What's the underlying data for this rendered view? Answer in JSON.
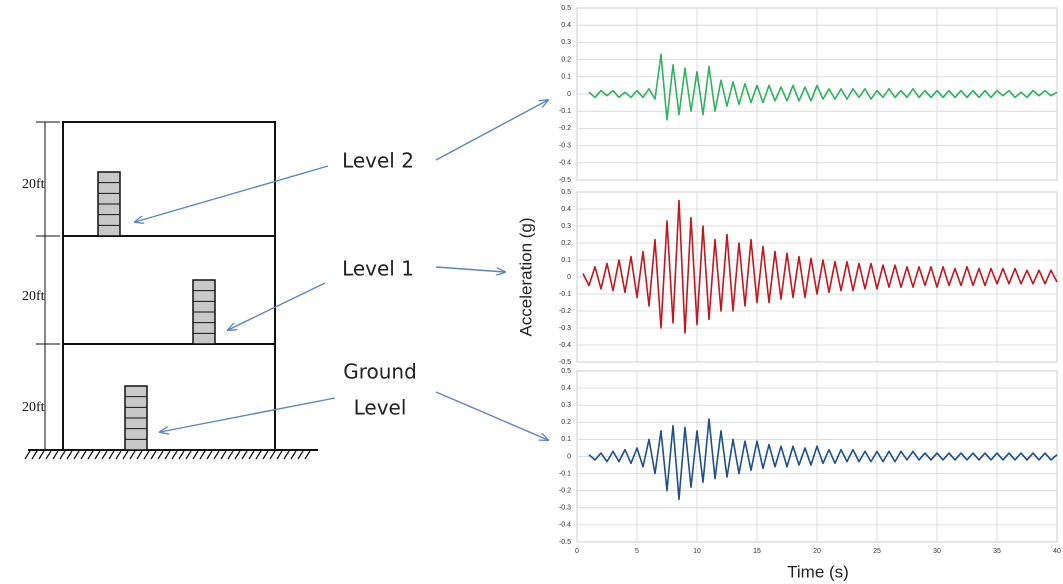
{
  "diagram": {
    "dimensions": [
      "20ft",
      "20ft",
      "20ft"
    ],
    "levels": [
      {
        "lines": [
          "Level 2"
        ]
      },
      {
        "lines": [
          "Level 1"
        ]
      },
      {
        "lines": [
          "Ground",
          "Level"
        ]
      }
    ]
  },
  "chart_data": [
    {
      "type": "line",
      "ylabel": "Acceleration (g)",
      "color": "#2fb35c",
      "grid": true,
      "xlim": [
        0,
        40
      ],
      "ylim": [
        -0.5,
        0.5
      ],
      "yticks": [
        -0.5,
        -0.4,
        -0.3,
        -0.2,
        -0.1,
        0,
        0.1,
        0.2,
        0.3,
        0.4,
        0.5
      ],
      "x": [
        0,
        0.5,
        1,
        1.5,
        2,
        2.5,
        3,
        3.5,
        4,
        4.5,
        5,
        5.5,
        6,
        6.5,
        7,
        7.5,
        8,
        8.5,
        9,
        9.5,
        10,
        10.5,
        11,
        11.5,
        12,
        12.5,
        13,
        13.5,
        14,
        14.5,
        15,
        15.5,
        16,
        16.5,
        17,
        17.5,
        18,
        18.5,
        19,
        19.5,
        20,
        20.5,
        21,
        21.5,
        22,
        22.5,
        23,
        23.5,
        24,
        24.5,
        25,
        25.5,
        26,
        26.5,
        27,
        27.5,
        28,
        28.5,
        29,
        29.5,
        30,
        30.5,
        31,
        31.5,
        32,
        32.5,
        33,
        33.5,
        34,
        34.5,
        35,
        35.5,
        36,
        36.5,
        37,
        37.5,
        38,
        38.5,
        39,
        39.5,
        40
      ],
      "values": [
        null,
        null,
        0.01,
        -0.02,
        0.02,
        -0.01,
        0.02,
        -0.02,
        0.01,
        -0.02,
        0.02,
        -0.02,
        0.03,
        -0.03,
        0.23,
        -0.15,
        0.17,
        -0.12,
        0.15,
        -0.1,
        0.13,
        -0.12,
        0.16,
        -0.1,
        0.08,
        -0.07,
        0.07,
        -0.06,
        0.06,
        -0.05,
        0.05,
        -0.05,
        0.05,
        -0.04,
        0.04,
        -0.04,
        0.05,
        -0.04,
        0.04,
        -0.04,
        0.05,
        -0.03,
        0.03,
        -0.03,
        0.03,
        -0.03,
        0.03,
        -0.02,
        0.03,
        -0.03,
        0.02,
        -0.02,
        0.03,
        -0.02,
        0.02,
        -0.02,
        0.03,
        -0.02,
        0.02,
        -0.02,
        0.02,
        -0.02,
        0.02,
        -0.02,
        0.02,
        -0.02,
        0.02,
        -0.02,
        0.02,
        -0.02,
        0.02,
        -0.01,
        0.02,
        -0.02,
        0.01,
        -0.02,
        0.02,
        -0.01,
        0.02,
        -0.01,
        0.01
      ]
    },
    {
      "type": "line",
      "color": "#c4161e",
      "grid": true,
      "xlim": [
        0,
        40
      ],
      "ylim": [
        -0.5,
        0.5
      ],
      "yticks": [
        -0.5,
        -0.4,
        -0.3,
        -0.2,
        -0.1,
        0,
        0.1,
        0.2,
        0.3,
        0.4,
        0.5
      ],
      "x": [
        0,
        0.5,
        1,
        1.5,
        2,
        2.5,
        3,
        3.5,
        4,
        4.5,
        5,
        5.5,
        6,
        6.5,
        7,
        7.5,
        8,
        8.5,
        9,
        9.5,
        10,
        10.5,
        11,
        11.5,
        12,
        12.5,
        13,
        13.5,
        14,
        14.5,
        15,
        15.5,
        16,
        16.5,
        17,
        17.5,
        18,
        18.5,
        19,
        19.5,
        20,
        20.5,
        21,
        21.5,
        22,
        22.5,
        23,
        23.5,
        24,
        24.5,
        25,
        25.5,
        26,
        26.5,
        27,
        27.5,
        28,
        28.5,
        29,
        29.5,
        30,
        30.5,
        31,
        31.5,
        32,
        32.5,
        33,
        33.5,
        34,
        34.5,
        35,
        35.5,
        36,
        36.5,
        37,
        37.5,
        38,
        38.5,
        39,
        39.5,
        40
      ],
      "values": [
        null,
        0.02,
        -0.05,
        0.06,
        -0.07,
        0.08,
        -0.08,
        0.1,
        -0.09,
        0.12,
        -0.12,
        0.15,
        -0.17,
        0.22,
        -0.3,
        0.33,
        -0.27,
        0.45,
        -0.33,
        0.35,
        -0.28,
        0.3,
        -0.25,
        0.22,
        -0.2,
        0.25,
        -0.2,
        0.2,
        -0.17,
        0.22,
        -0.15,
        0.18,
        -0.15,
        0.15,
        -0.13,
        0.14,
        -0.12,
        0.12,
        -0.12,
        0.11,
        -0.1,
        0.1,
        -0.09,
        0.09,
        -0.08,
        0.09,
        -0.08,
        0.08,
        -0.07,
        0.08,
        -0.07,
        0.07,
        -0.06,
        0.07,
        -0.06,
        0.06,
        -0.06,
        0.06,
        -0.05,
        0.06,
        -0.06,
        0.06,
        -0.05,
        0.05,
        -0.05,
        0.06,
        -0.05,
        0.05,
        -0.05,
        0.05,
        -0.04,
        0.05,
        -0.04,
        0.05,
        -0.04,
        0.04,
        -0.04,
        0.04,
        -0.04,
        0.04,
        -0.03
      ]
    },
    {
      "type": "line",
      "xlabel": "Time (s)",
      "color": "#1f4f8e",
      "grid": true,
      "xlim": [
        0,
        40
      ],
      "ylim": [
        -0.5,
        0.5
      ],
      "xticks": [
        0,
        5,
        10,
        15,
        20,
        25,
        30,
        35,
        40
      ],
      "yticks": [
        -0.5,
        -0.4,
        -0.3,
        -0.2,
        -0.1,
        0,
        0.1,
        0.2,
        0.3,
        0.4,
        0.5
      ],
      "x": [
        0,
        0.5,
        1,
        1.5,
        2,
        2.5,
        3,
        3.5,
        4,
        4.5,
        5,
        5.5,
        6,
        6.5,
        7,
        7.5,
        8,
        8.5,
        9,
        9.5,
        10,
        10.5,
        11,
        11.5,
        12,
        12.5,
        13,
        13.5,
        14,
        14.5,
        15,
        15.5,
        16,
        16.5,
        17,
        17.5,
        18,
        18.5,
        19,
        19.5,
        20,
        20.5,
        21,
        21.5,
        22,
        22.5,
        23,
        23.5,
        24,
        24.5,
        25,
        25.5,
        26,
        26.5,
        27,
        27.5,
        28,
        28.5,
        29,
        29.5,
        30,
        30.5,
        31,
        31.5,
        32,
        32.5,
        33,
        33.5,
        34,
        34.5,
        35,
        35.5,
        36,
        36.5,
        37,
        37.5,
        38,
        38.5,
        39,
        39.5,
        40
      ],
      "values": [
        null,
        null,
        0.01,
        -0.02,
        0.02,
        -0.03,
        0.03,
        -0.03,
        0.04,
        -0.04,
        0.05,
        -0.06,
        0.1,
        -0.1,
        0.15,
        -0.2,
        0.18,
        -0.25,
        0.17,
        -0.18,
        0.15,
        -0.15,
        0.22,
        -0.13,
        0.15,
        -0.12,
        0.1,
        -0.1,
        0.09,
        -0.08,
        0.09,
        -0.07,
        0.07,
        -0.06,
        0.06,
        -0.06,
        0.06,
        -0.05,
        0.05,
        -0.05,
        0.06,
        -0.04,
        0.04,
        -0.04,
        0.04,
        -0.03,
        0.04,
        -0.03,
        0.03,
        -0.03,
        0.03,
        -0.03,
        0.03,
        -0.03,
        0.03,
        -0.02,
        0.03,
        -0.02,
        0.02,
        -0.02,
        0.02,
        -0.02,
        0.02,
        -0.02,
        0.02,
        -0.02,
        0.02,
        -0.02,
        0.02,
        -0.02,
        0.02,
        -0.02,
        0.02,
        -0.02,
        0.02,
        -0.02,
        0.02,
        -0.02,
        0.02,
        -0.02,
        0.01
      ]
    }
  ]
}
